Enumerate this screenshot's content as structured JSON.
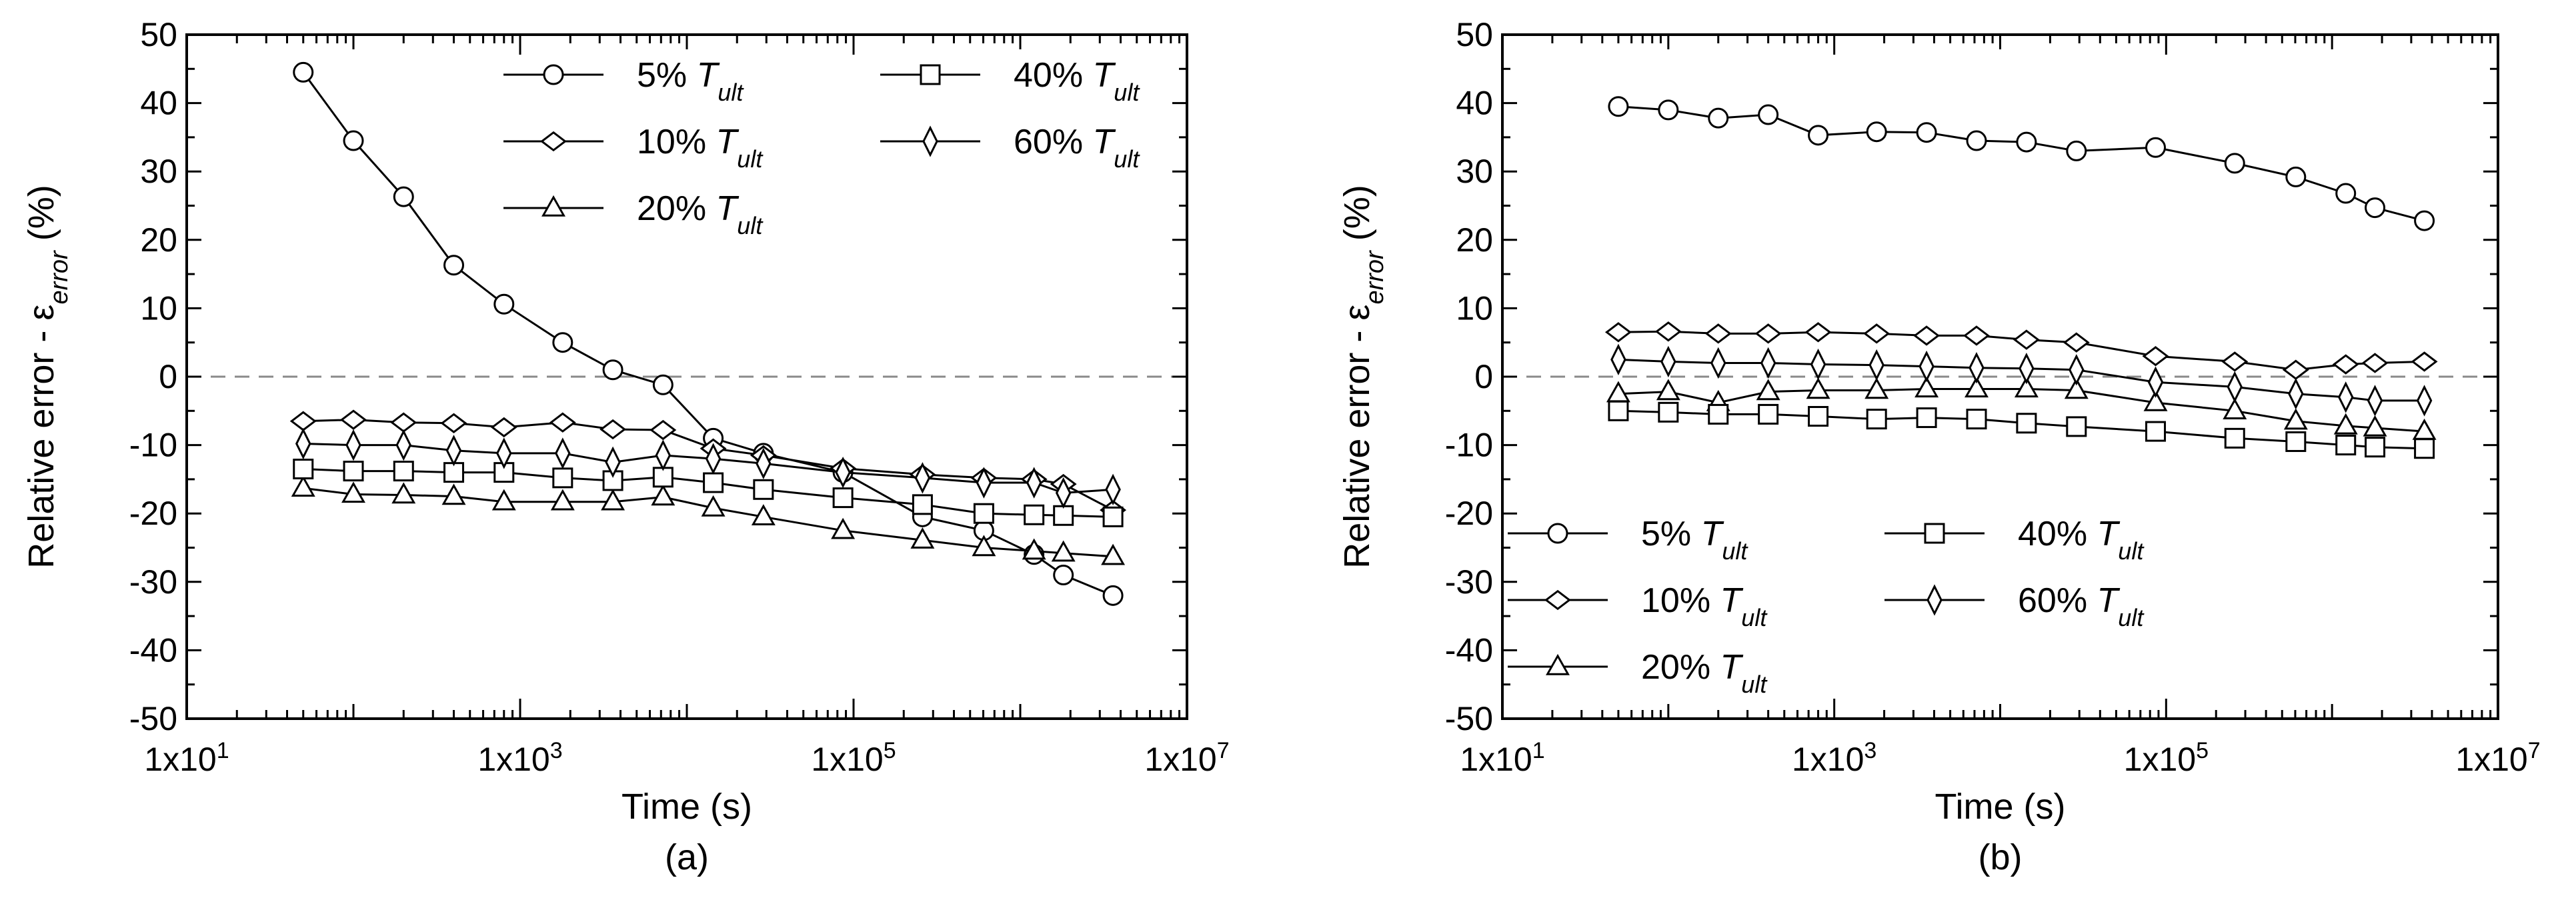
{
  "chart_data": [
    {
      "type": "line",
      "panel_label": "(a)",
      "xlabel": "Time (s)",
      "ylabel_main": "Relative error - ε",
      "ylabel_sub": "error",
      "ylabel_suffix": " (%)",
      "xscale": "log",
      "xlim": [
        10,
        10000000
      ],
      "ylim": [
        -50,
        50
      ],
      "x_ticks": [
        {
          "value": 10,
          "label": "1x10",
          "exp": "1"
        },
        {
          "value": 1000,
          "label": "1x10",
          "exp": "3"
        },
        {
          "value": 100000,
          "label": "1x10",
          "exp": "5"
        },
        {
          "value": 10000000,
          "label": "1x10",
          "exp": "7"
        }
      ],
      "y_ticks": [
        50,
        40,
        30,
        20,
        10,
        0,
        -10,
        -20,
        -30,
        -40,
        -50
      ],
      "reference_line": 0,
      "legend_placement": "top-right",
      "legend_columns": 2,
      "series": [
        {
          "name_prefix": "5% ",
          "name_var": "T",
          "name_sub": "ult",
          "marker": "circle",
          "x": [
            50,
            100,
            200,
            400,
            800,
            1800,
            3600,
            7200,
            14400,
            28800,
            86400,
            259200,
            604800,
            1209600,
            1814400,
            3600000
          ],
          "y": [
            44.5,
            34.5,
            26.3,
            16.3,
            10.6,
            5,
            1,
            -1.2,
            -9,
            -11.2,
            -14,
            -20.5,
            -22.5,
            -26,
            -29,
            -32
          ]
        },
        {
          "name_prefix": "10% ",
          "name_var": "T",
          "name_sub": "ult",
          "marker": "diamond",
          "x": [
            50,
            100,
            200,
            400,
            800,
            1800,
            3600,
            7200,
            14400,
            28800,
            86400,
            259200,
            604800,
            1209600,
            1814400,
            3600000
          ],
          "y": [
            -6.5,
            -6.3,
            -6.7,
            -6.8,
            -7.4,
            -6.7,
            -7.7,
            -7.8,
            -10.5,
            -11.5,
            -13.4,
            -14.3,
            -14.8,
            -15,
            -15.7,
            -19.5
          ]
        },
        {
          "name_prefix": "20% ",
          "name_var": "T",
          "name_sub": "ult",
          "marker": "triangle",
          "x": [
            50,
            100,
            200,
            400,
            800,
            1800,
            3600,
            7200,
            14400,
            28800,
            86400,
            259200,
            604800,
            1209600,
            1814400,
            3600000
          ],
          "y": [
            -16.3,
            -17.2,
            -17.3,
            -17.5,
            -18.3,
            -18.3,
            -18.3,
            -17.6,
            -19.2,
            -20.5,
            -22.5,
            -23.9,
            -25,
            -25.5,
            -25.8,
            -26.3
          ]
        },
        {
          "name_prefix": "40% ",
          "name_var": "T",
          "name_sub": "ult",
          "marker": "square",
          "x": [
            50,
            100,
            200,
            400,
            800,
            1800,
            3600,
            7200,
            14400,
            28800,
            86400,
            259200,
            604800,
            1209600,
            1814400,
            3600000
          ],
          "y": [
            -13.5,
            -13.8,
            -13.8,
            -14,
            -14,
            -14.8,
            -15.2,
            -14.7,
            -15.5,
            -16.5,
            -17.7,
            -18.7,
            -20,
            -20.2,
            -20.3,
            -20.5
          ]
        },
        {
          "name_prefix": "60% ",
          "name_var": "T",
          "name_sub": "ult",
          "marker": "thin-diamond",
          "x": [
            50,
            100,
            200,
            400,
            800,
            1800,
            3600,
            7200,
            14400,
            28800,
            86400,
            259200,
            604800,
            1209600,
            1814400,
            3600000
          ],
          "y": [
            -9.8,
            -10,
            -10,
            -10.8,
            -11.2,
            -11.2,
            -12.5,
            -11.5,
            -12,
            -12.7,
            -14,
            -14.8,
            -15.5,
            -15.5,
            -17,
            -16.5
          ]
        }
      ]
    },
    {
      "type": "line",
      "panel_label": "(b)",
      "xlabel": "Time (s)",
      "ylabel_main": "Relative error - ε",
      "ylabel_sub": "error",
      "ylabel_suffix": " (%)",
      "xscale": "log",
      "xlim": [
        10,
        10000000
      ],
      "ylim": [
        -50,
        50
      ],
      "x_ticks": [
        {
          "value": 10,
          "label": "1x10",
          "exp": "1"
        },
        {
          "value": 1000,
          "label": "1x10",
          "exp": "3"
        },
        {
          "value": 100000,
          "label": "1x10",
          "exp": "5"
        },
        {
          "value": 10000000,
          "label": "1x10",
          "exp": "7"
        }
      ],
      "y_ticks": [
        50,
        40,
        30,
        20,
        10,
        0,
        -10,
        -20,
        -30,
        -40,
        -50
      ],
      "reference_line": 0,
      "legend_placement": "bottom-left",
      "legend_columns": 2,
      "series": [
        {
          "name_prefix": "5% ",
          "name_var": "T",
          "name_sub": "ult",
          "marker": "circle",
          "x": [
            50,
            100,
            200,
            400,
            800,
            1800,
            3600,
            7200,
            14400,
            28800,
            86400,
            259200,
            604800,
            1209600,
            1814400,
            3600000
          ],
          "y": [
            39.5,
            39,
            37.8,
            38.3,
            35.3,
            35.8,
            35.7,
            34.5,
            34.3,
            33,
            33.5,
            31.2,
            29.2,
            26.8,
            24.7,
            22.8
          ]
        },
        {
          "name_prefix": "10% ",
          "name_var": "T",
          "name_sub": "ult",
          "marker": "diamond",
          "x": [
            50,
            100,
            200,
            400,
            800,
            1800,
            3600,
            7200,
            14400,
            28800,
            86400,
            259200,
            604800,
            1209600,
            1814400,
            3600000
          ],
          "y": [
            6.5,
            6.6,
            6.3,
            6.3,
            6.5,
            6.3,
            6,
            6,
            5.4,
            5,
            3,
            2.2,
            1,
            1.8,
            2,
            2.2
          ]
        },
        {
          "name_prefix": "20% ",
          "name_var": "T",
          "name_sub": "ult",
          "marker": "triangle",
          "x": [
            50,
            100,
            200,
            400,
            800,
            1800,
            3600,
            7200,
            14400,
            28800,
            86400,
            259200,
            604800,
            1209600,
            1814400,
            3600000
          ],
          "y": [
            -2.5,
            -2.2,
            -3.8,
            -2.2,
            -2,
            -2,
            -1.8,
            -1.8,
            -1.8,
            -2,
            -3.8,
            -5,
            -6.5,
            -7.2,
            -7.5,
            -8
          ]
        },
        {
          "name_prefix": "40% ",
          "name_var": "T",
          "name_sub": "ult",
          "marker": "square",
          "x": [
            50,
            100,
            200,
            400,
            800,
            1800,
            3600,
            7200,
            14400,
            28800,
            86400,
            259200,
            604800,
            1209600,
            1814400,
            3600000
          ],
          "y": [
            -5,
            -5.2,
            -5.5,
            -5.5,
            -5.8,
            -6.2,
            -6,
            -6.2,
            -6.8,
            -7.3,
            -8,
            -9,
            -9.5,
            -10,
            -10.3,
            -10.5
          ]
        },
        {
          "name_prefix": "60% ",
          "name_var": "T",
          "name_sub": "ult",
          "marker": "thin-diamond",
          "x": [
            50,
            100,
            200,
            400,
            800,
            1800,
            3600,
            7200,
            14400,
            28800,
            86400,
            259200,
            604800,
            1209600,
            1814400,
            3600000
          ],
          "y": [
            2.5,
            2.2,
            2,
            2,
            1.8,
            1.7,
            1.5,
            1.3,
            1.2,
            1,
            -0.8,
            -1.5,
            -2.5,
            -3,
            -3.5,
            -3.5
          ]
        }
      ]
    }
  ]
}
